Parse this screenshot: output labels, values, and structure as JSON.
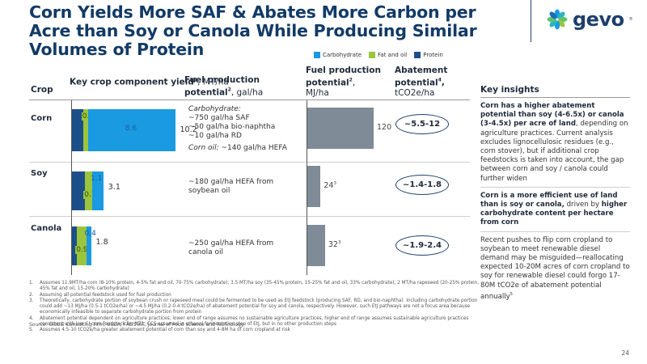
{
  "header": {
    "title": "Corn Yields More SAF & Abates More Carbon per Acre than Soy or Canola While Producing Similar Volumes of Protein",
    "logo_text": "gevo",
    "logo_icon": "pinwheel-logo-icon"
  },
  "legend": [
    {
      "label": "Carbohydrate",
      "color": "#1a9ae0"
    },
    {
      "label": "Fat and oil",
      "color": "#9bc53d"
    },
    {
      "label": "Protein",
      "color": "#1c4f8a"
    }
  ],
  "columns": {
    "crop": "Crop",
    "yield_bold": "Key crop component yield",
    "yield_sup": "1",
    "yield_unit": ", MT/ha",
    "fuel_bold": "Fuel production potential",
    "fuel_sup": "2",
    "fuel_unit": ", gal/ha",
    "mj_bold1": "Fuel production",
    "mj_bold2": "potential",
    "mj_sup": "2",
    "mj_unit": "MJ/ha",
    "abate_bold1": "Abatement",
    "abate_bold2": "potential",
    "abate_sup": "4",
    "abate_unit": "tCO2e/ha"
  },
  "chart_data": [
    {
      "type": "bar",
      "title": "Key crop component yield, MT/ha",
      "orientation": "horizontal-stacked",
      "categories": [
        "Corn",
        "Soy",
        "Canola"
      ],
      "series": [
        {
          "name": "Protein",
          "values": [
            1.1,
            1.3,
            0.5
          ]
        },
        {
          "name": "Fat and oil",
          "values": [
            0.5,
            0.7,
            0.9
          ]
        },
        {
          "name": "Carbohydrate",
          "values": [
            8.6,
            1.1,
            0.4
          ]
        }
      ],
      "data_labels": {
        "Fat and oil": [
          "0.5",
          "0.7",
          "0.9"
        ],
        "Carbohydrate": [
          "8.6",
          "1.1",
          "0.4"
        ]
      },
      "totals": [
        "10.2",
        "3.1",
        "1.8"
      ],
      "xlabel": "MT/ha"
    },
    {
      "type": "bar",
      "title": "Fuel production potential, MJ/ha",
      "orientation": "horizontal",
      "categories": [
        "Corn",
        "Soy",
        "Canola"
      ],
      "values": [
        120,
        24,
        32
      ],
      "labels": [
        "120",
        "24",
        "32"
      ],
      "label_superscripts": [
        "",
        "3",
        "3"
      ],
      "xlabel": "MJ/ha",
      "xlim": [
        0,
        120
      ]
    }
  ],
  "rows": [
    {
      "crop": "Corn",
      "fuel_lines": [
        {
          "text": "Carbohydrate:",
          "italic": true
        },
        {
          "text": "~750 gal/ha SAF",
          "italic": false
        },
        {
          "text": "~50 gal/ha bio-naphtha",
          "italic": false
        },
        {
          "text": "~10 gal/ha RD",
          "italic": false
        }
      ],
      "fuel_extra_italic": "Corn oil:",
      "fuel_extra_rest": " ~140 gal/ha HEFA",
      "abatement": "~5.5-12"
    },
    {
      "crop": "Soy",
      "fuel_lines": [
        {
          "text": "~180 gal/ha HEFA from",
          "italic": false
        },
        {
          "text": "soybean oil",
          "italic": false
        }
      ],
      "abatement": "~1.4-1.8"
    },
    {
      "crop": "Canola",
      "fuel_lines": [
        {
          "text": "~250 gal/ha HEFA from",
          "italic": false
        },
        {
          "text": "canola oil",
          "italic": false
        }
      ],
      "abatement": "~1.9-2.4"
    }
  ],
  "insights": {
    "title": "Key insights",
    "p1_bold": "Corn has a higher abatement potential than soy (4-6.5x) or canola (3-4.5x) per acre of land",
    "p1_rest": ", depending on agriculture practices. Current analysis excludes lignocellulosic residues (e.g., corn stover), but if additional crop feedstocks is taken into account, the gap between corn and soy / canola could further widen",
    "p2_bold1": "Corn is a more efficient use of land than is soy or canola,",
    "p2_mid": " driven by ",
    "p2_bold2": "higher carbohydrate content per hectare from corn",
    "p3": "Recent pushes to flip corn cropland to soybean to meet renewable diesel demand may be misguided—reallocating expected 10-20M acres of corn cropland to soy for renewable diesel could forgo 17-80M tCO2e of abatement potential annually",
    "p3_sup": "5"
  },
  "footnotes": [
    {
      "num": "1.",
      "text": "Assumes 11.9MT/ha corn (8-10% protein, 4-5% fat and oil, 70-75% carbohydrate); 3.5 MT/ha soy (35-45% protein, 15-25% fat and oil, 33% carbohydrate); 2 MT/ha rapeseed (20-25% protein, 45% fat and oil, 15-20% carbohydrate)"
    },
    {
      "num": "2.",
      "text": "Assuming all potential feedstock used for fuel production"
    },
    {
      "num": "3.",
      "text": "Theoretically, carbohydrate portion of soybean crush or rapeseed meal could be fermented to be used as EtJ feedstock (producing SAF, RD, and bio-naphtha). Including carbohydrate portion could add ~13 MJ/ha (0.5-1 tCO2e/ha) or ~4.5 MJ/ha (0.2-0.4 tCO2e/ha) of abatement potential for soy and canola, respectively. However, such EtJ pathways are not a focus area because economically infeasible to separate carbohydrate portion from protein"
    },
    {
      "num": "4.",
      "text": "Abatement potential dependent on agriculture practices; lower end of range assumes no sustainable agriculture practices, higher end of range assumes sustainable agriculture practices consistent with low CI corn feedstock for NZ1; CCS assumed in ethanol fermentation step of EtJ, but in no other production steps"
    },
    {
      "num": "5.",
      "text": "Assumes 4.5-10 tCO2e/ha greater abatement potential of corn than soy and 4-8M ha of corn cropland at risk"
    }
  ],
  "source": "Source: Global Consulting Firm, USDA; FAOSTAT; Journal of Food Science and Technology",
  "page_number": "24"
}
